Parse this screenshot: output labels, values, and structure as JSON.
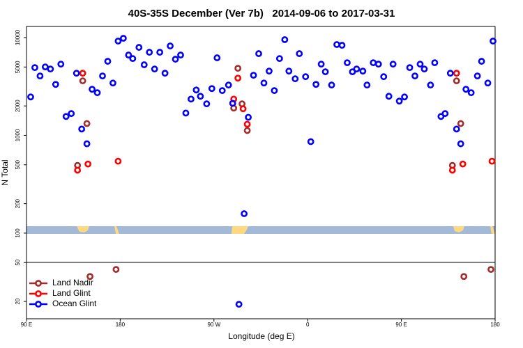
{
  "chart_data": {
    "type": "scatter",
    "title": "40S-35S December (Ver 7b)   2014-09-06 to 2017-03-31",
    "x_label": "Longitude (deg E)",
    "y_label": "N Total",
    "log_y": true,
    "grid": false,
    "legend": "lower left",
    "xlim": [
      90,
      540
    ],
    "xticks": [
      {
        "value": 90,
        "label": "90 E"
      },
      180,
      {
        "value": 270,
        "label": "90 W"
      },
      {
        "value": 360,
        "label": "0"
      },
      {
        "value": 450,
        "label": "90 E"
      },
      {
        "value": 540,
        "label": "180"
      }
    ],
    "ylim": [
      13.3,
      13000
    ],
    "yticks": [
      20,
      50,
      100,
      200,
      500,
      1000,
      2000,
      5000,
      10000
    ],
    "series": [
      {
        "name": "Land Nadir",
        "color": "#a52a2a",
        "x": [
          139,
          144,
          148,
          151,
          176,
          289,
          293,
          297,
          302,
          499,
          503,
          507,
          510,
          536
        ],
        "values": [
          493,
          3610,
          1320,
          36,
          42.5,
          1900,
          4850,
          2100,
          1120,
          493,
          3610,
          1320,
          36,
          42.5
        ]
      },
      {
        "name": "Land Glint",
        "color": "#ff0000",
        "x": [
          139,
          144,
          149,
          178,
          289,
          293,
          298,
          302,
          499,
          503,
          509,
          537
        ],
        "values": [
          440,
          4320,
          509,
          544,
          2350,
          3850,
          1870,
          1300,
          440,
          4320,
          509,
          544
        ]
      },
      {
        "name": "Ocean Glint",
        "color": "#0000ff",
        "x": [
          94,
          98,
          103,
          108,
          113,
          118,
          123,
          128,
          133,
          138,
          143,
          148,
          153,
          158,
          163,
          168,
          173,
          178,
          183,
          188,
          192,
          198,
          203,
          208,
          213,
          218,
          223,
          228,
          233,
          238,
          243,
          248,
          253,
          257,
          263,
          268,
          273,
          278,
          284,
          288,
          294,
          299,
          303,
          308,
          313,
          318,
          323,
          328,
          333,
          338,
          342,
          348,
          352,
          358,
          363,
          368,
          373,
          377,
          383,
          388,
          393,
          398,
          403,
          407,
          413,
          417,
          423,
          428,
          433,
          438,
          442,
          448,
          453,
          458,
          463,
          468,
          472,
          478,
          482,
          488,
          492,
          497,
          503,
          507,
          512,
          517,
          523,
          527,
          533,
          538
        ],
        "values": [
          2470,
          4930,
          4050,
          5010,
          4770,
          3320,
          5350,
          1560,
          1670,
          4320,
          1160,
          820,
          2960,
          2730,
          4050,
          5720,
          3430,
          9210,
          9840,
          6630,
          6100,
          7940,
          5270,
          7080,
          4770,
          7080,
          4320,
          8210,
          6010,
          6630,
          1690,
          2350,
          2910,
          2510,
          2100,
          3010,
          6210,
          2870,
          3270,
          2130,
          18.7,
          158,
          1530,
          4120,
          6850,
          3430,
          4540,
          2870,
          6100,
          9520,
          4540,
          3790,
          6850,
          3980,
          862,
          3320,
          5350,
          4470,
          3270,
          8490,
          8340,
          5530,
          4470,
          4770,
          4540,
          3270,
          5530,
          5350,
          3980,
          2510,
          5350,
          2240,
          2470,
          4930,
          4050,
          5350,
          4770,
          3270,
          5530,
          1560,
          1670,
          4320,
          1160,
          820,
          2960,
          2730,
          4050,
          5720,
          3430,
          9210
        ]
      }
    ]
  }
}
